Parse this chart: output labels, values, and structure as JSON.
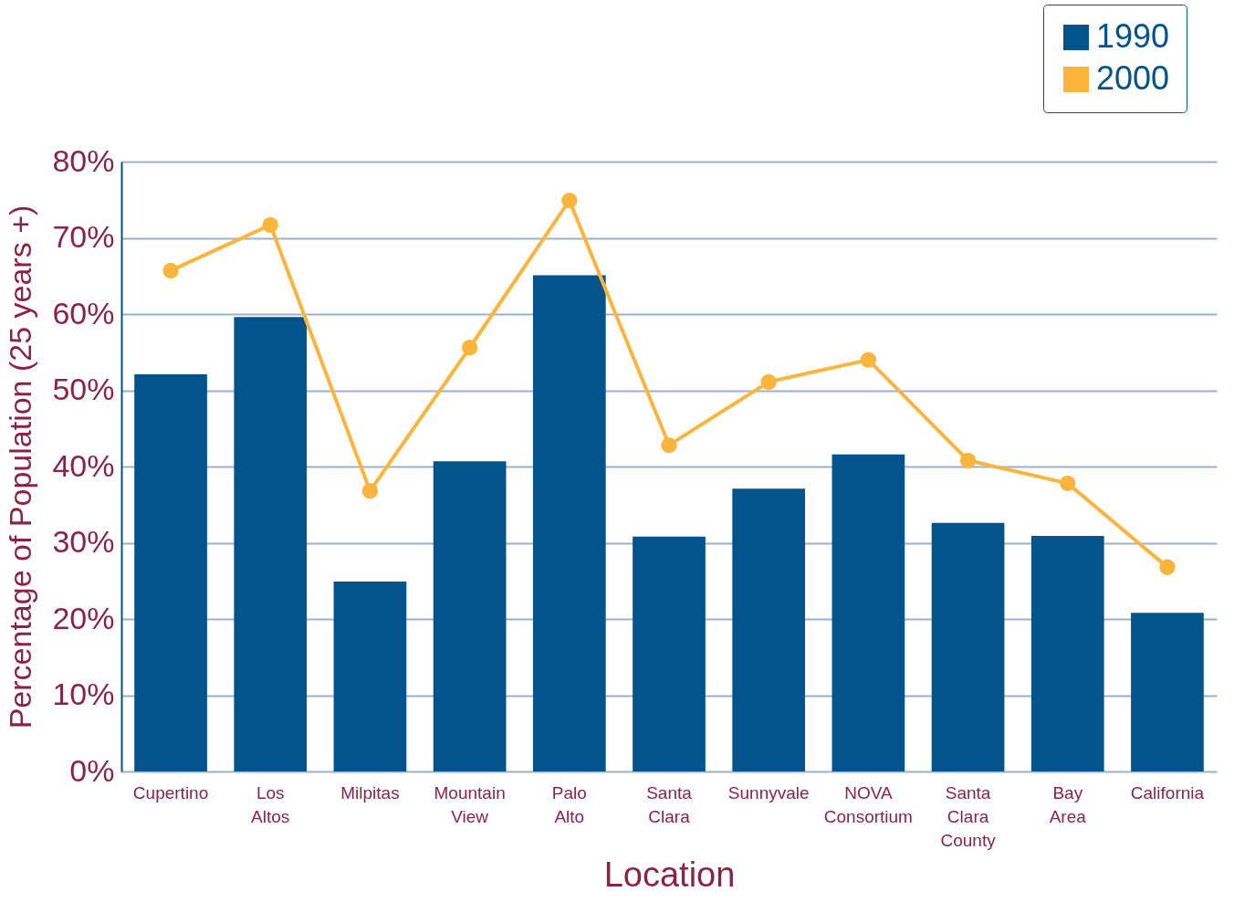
{
  "chart_data": {
    "type": "bar",
    "xlabel": "Location",
    "ylabel": "Percentage of Population (25 years +)",
    "categories": [
      "Cupertino",
      "Los Altos",
      "Milpitas",
      "Mountain View",
      "Palo Alto",
      "Santa Clara",
      "Sunnyvale",
      "NOVA Consortium",
      "Santa Clara County",
      "Bay Area",
      "California"
    ],
    "series": [
      {
        "name": "1990",
        "color": "#03548c",
        "values": [
          52.1,
          59.6,
          24.9,
          40.7,
          65.1,
          30.8,
          37.1,
          41.6,
          32.6,
          30.9,
          20.8
        ]
      },
      {
        "name": "2000",
        "type": "line",
        "color": "#fbb53d",
        "values": [
          65.7,
          71.7,
          36.8,
          55.6,
          74.9,
          42.8,
          51.1,
          54.0,
          40.8,
          37.8,
          26.8
        ]
      }
    ],
    "ylim": [
      0,
      80
    ],
    "yticks": [
      {
        "value": 0,
        "label": "0%"
      },
      {
        "value": 10,
        "label": "10%"
      },
      {
        "value": 20,
        "label": "20%"
      },
      {
        "value": 30,
        "label": "30%"
      },
      {
        "value": 40,
        "label": "40%"
      },
      {
        "value": 50,
        "label": "50%"
      },
      {
        "value": 60,
        "label": "60%"
      },
      {
        "value": 70,
        "label": "70%"
      },
      {
        "value": 80,
        "label": "80%"
      }
    ],
    "grid": "y",
    "legend": "top right",
    "marker": "circle",
    "line_style": "solid"
  }
}
